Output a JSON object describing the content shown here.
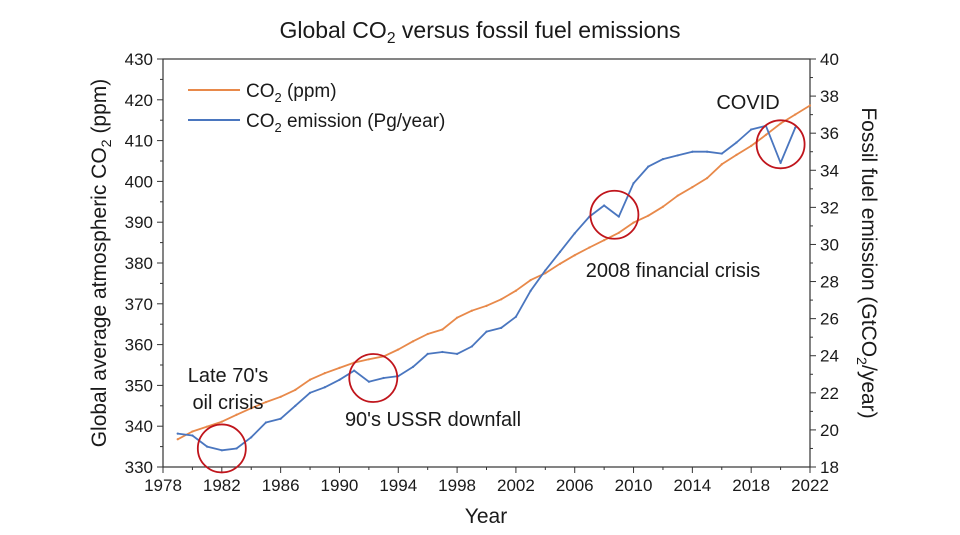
{
  "chart_data": {
    "type": "line",
    "title": "Global CO₂ versus fossil fuel emissions",
    "xlabel": "Year",
    "ylabel_left": "Global average atmospheric CO₂ (ppm)",
    "ylabel_right": "Fossil fuel emission (GtCO₂/year)",
    "xlim": [
      1978,
      2022
    ],
    "ylim_left": [
      330,
      430
    ],
    "ylim_right": [
      18,
      40
    ],
    "x_ticks": [
      "1978",
      "1982",
      "1986",
      "1990",
      "1994",
      "1998",
      "2002",
      "2006",
      "2010",
      "2014",
      "2018",
      "2022"
    ],
    "y_left_ticks": [
      "330",
      "340",
      "350",
      "360",
      "370",
      "380",
      "390",
      "400",
      "410",
      "420",
      "430"
    ],
    "y_right_ticks": [
      "18",
      "20",
      "22",
      "24",
      "26",
      "28",
      "30",
      "32",
      "34",
      "36",
      "38",
      "40"
    ],
    "legend_position": "top-left",
    "legend": [
      {
        "text": "CO₂ (ppm)",
        "color": "#e8894a"
      },
      {
        "text": "CO₂ emission (Pg/year)",
        "color": "#4a76bf"
      }
    ],
    "series": [
      {
        "name": "CO₂ (ppm)",
        "axis": "left",
        "color": "#e8894a",
        "x": [
          1979,
          1980,
          1981,
          1982,
          1983,
          1984,
          1985,
          1986,
          1987,
          1988,
          1989,
          1990,
          1991,
          1992,
          1993,
          1994,
          1995,
          1996,
          1997,
          1998,
          1999,
          2000,
          2001,
          2002,
          2003,
          2004,
          2005,
          2006,
          2007,
          2008,
          2009,
          2010,
          2011,
          2012,
          2013,
          2014,
          2015,
          2016,
          2017,
          2018,
          2019,
          2020,
          2021,
          2022
        ],
        "values": [
          336.8,
          338.7,
          339.9,
          341.1,
          342.8,
          344.4,
          345.9,
          347.2,
          348.9,
          351.4,
          353.0,
          354.3,
          355.6,
          356.4,
          357.1,
          358.8,
          360.8,
          362.6,
          363.7,
          366.6,
          368.3,
          369.5,
          371.1,
          373.2,
          375.8,
          377.5,
          379.8,
          381.9,
          383.8,
          385.6,
          387.4,
          389.9,
          391.6,
          393.8,
          396.5,
          398.6,
          400.8,
          404.2,
          406.5,
          408.7,
          411.4,
          414.2,
          416.4,
          418.6
        ]
      },
      {
        "name": "CO₂ emission (Pg/year)",
        "axis": "right",
        "color": "#4a76bf",
        "x": [
          1979,
          1980,
          1981,
          1982,
          1983,
          1984,
          1985,
          1986,
          1987,
          1988,
          1989,
          1990,
          1991,
          1992,
          1993,
          1994,
          1995,
          1996,
          1997,
          1998,
          1999,
          2000,
          2001,
          2002,
          2003,
          2004,
          2005,
          2006,
          2007,
          2008,
          2009,
          2010,
          2011,
          2012,
          2013,
          2014,
          2015,
          2016,
          2017,
          2018,
          2019,
          2020,
          2021
        ],
        "values": [
          19.8,
          19.7,
          19.1,
          18.9,
          19.0,
          19.6,
          20.4,
          20.6,
          21.3,
          22.0,
          22.3,
          22.7,
          23.2,
          22.6,
          22.8,
          22.9,
          23.4,
          24.1,
          24.2,
          24.1,
          24.5,
          25.3,
          25.5,
          26.1,
          27.5,
          28.6,
          29.6,
          30.6,
          31.5,
          32.1,
          31.5,
          33.3,
          34.2,
          34.6,
          34.8,
          35.0,
          35.0,
          34.9,
          35.5,
          36.2,
          36.4,
          34.4,
          36.3
        ]
      }
    ],
    "annotations": [
      {
        "lines": [
          "Late 70's",
          "oil crisis"
        ],
        "circle_at": [
          1982,
          19.0
        ]
      },
      {
        "lines": [
          "90's USSR downfall"
        ],
        "circle_at": [
          1992.3,
          22.8
        ]
      },
      {
        "lines": [
          "2008 financial crisis"
        ],
        "circle_at": [
          2008.7,
          31.6
        ]
      },
      {
        "lines": [
          "COVID"
        ],
        "circle_at": [
          2020,
          35.4
        ]
      }
    ],
    "circle_color": "#c0151c"
  }
}
